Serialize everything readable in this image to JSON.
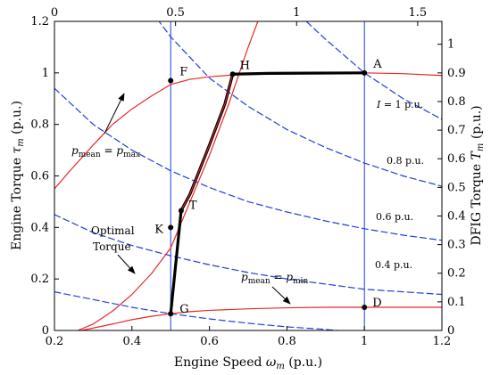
{
  "chart_data": {
    "type": "line",
    "axes": {
      "bottom": {
        "label": "Engine Speed ωm (p.u.)",
        "lim": [
          0.2,
          1.2
        ],
        "ticks": [
          0.2,
          0.4,
          0.6,
          0.8,
          1,
          1.2
        ],
        "tick_labels": [
          "0.2",
          "0.4",
          "0.6",
          "0.8",
          "1",
          "1.2"
        ]
      },
      "left": {
        "label": "Engine Torque τm (p.u.)",
        "lim": [
          0,
          1.2
        ],
        "ticks": [
          0,
          0.2,
          0.4,
          0.6,
          0.8,
          1,
          1.2
        ],
        "tick_labels": [
          "0",
          "0.2",
          "0.4",
          "0.6",
          "0.8",
          "1",
          "1.2"
        ]
      },
      "top": {
        "lim": [
          0,
          1.6
        ],
        "ticks": [
          0,
          0.5,
          1,
          1.5
        ],
        "tick_labels": [
          "0",
          "0.5",
          "1",
          "1.5"
        ]
      },
      "right": {
        "label": "DFIG Torque Tm (p.u.)",
        "lim": [
          0,
          1.08
        ],
        "ticks": [
          0,
          0.1,
          0.2,
          0.3,
          0.4,
          0.5,
          0.6,
          0.7,
          0.8,
          0.9,
          1
        ],
        "tick_labels": [
          "0",
          "0.1",
          "0.2",
          "0.3",
          "0.4",
          "0.5",
          "0.6",
          "0.7",
          "0.8",
          "0.9",
          "1"
        ]
      }
    },
    "grid": false,
    "series": [
      {
        "kind": "p_max_curve",
        "color": "#e8282b",
        "x": [
          0.2,
          0.24,
          0.3,
          0.35,
          0.4,
          0.45,
          0.5,
          0.55,
          0.6,
          0.66,
          0.75,
          0.85,
          1.0,
          1.1,
          1.2
        ],
        "y": [
          0.55,
          0.62,
          0.72,
          0.8,
          0.86,
          0.91,
          0.955,
          0.975,
          0.985,
          0.992,
          0.997,
          0.999,
          1.0,
          0.997,
          0.99
        ]
      },
      {
        "kind": "p_min_curve",
        "color": "#e8282b",
        "x": [
          0.27,
          0.35,
          0.4,
          0.45,
          0.5,
          0.55,
          0.6,
          0.7,
          0.8,
          0.9,
          1.0,
          1.1,
          1.2
        ],
        "y": [
          0.0,
          0.025,
          0.042,
          0.055,
          0.065,
          0.073,
          0.078,
          0.084,
          0.088,
          0.09,
          0.09,
          0.09,
          0.09
        ]
      },
      {
        "kind": "optimal_torque_curve",
        "color": "#e8282b",
        "x": [
          0.26,
          0.3,
          0.35,
          0.4,
          0.45,
          0.5,
          0.55,
          0.6,
          0.65,
          0.7,
          0.725
        ],
        "y": [
          0.0,
          0.025,
          0.075,
          0.14,
          0.22,
          0.32,
          0.5,
          0.68,
          0.88,
          1.1,
          1.2
        ]
      },
      {
        "kind": "operating_path",
        "color": "#000000",
        "x": [
          0.5,
          0.527,
          0.55,
          0.6,
          0.64,
          0.66,
          0.75,
          0.85,
          1.0
        ],
        "y": [
          0.065,
          0.465,
          0.53,
          0.72,
          0.88,
          0.995,
          0.998,
          0.999,
          1.0
        ]
      },
      {
        "kind": "current_contour",
        "label": "I = 1 p.u.",
        "color": "#1f3fdc",
        "dashed": true,
        "x": [
          0.62,
          0.7,
          0.8,
          0.9,
          1.0,
          1.1,
          1.2
        ],
        "y": [
          1.6,
          1.43,
          1.27,
          1.13,
          1.0,
          0.9,
          0.82
        ]
      },
      {
        "kind": "current_contour",
        "label": "0.8 p.u.",
        "color": "#1f3fdc",
        "dashed": true,
        "x": [
          0.42,
          0.5,
          0.6,
          0.7,
          0.8,
          0.9,
          1.0,
          1.1,
          1.2
        ],
        "y": [
          1.3,
          1.14,
          0.98,
          0.87,
          0.78,
          0.71,
          0.65,
          0.6,
          0.56
        ]
      },
      {
        "kind": "current_contour",
        "label": "0.6 p.u.",
        "color": "#1f3fdc",
        "dashed": true,
        "x": [
          0.2,
          0.3,
          0.4,
          0.5,
          0.6,
          0.7,
          0.8,
          0.9,
          1.0,
          1.1,
          1.2
        ],
        "y": [
          0.94,
          0.8,
          0.7,
          0.62,
          0.555,
          0.5,
          0.46,
          0.425,
          0.395,
          0.37,
          0.35
        ]
      },
      {
        "kind": "current_contour",
        "label": "0.4 p.u.",
        "color": "#1f3fdc",
        "dashed": true,
        "x": [
          0.2,
          0.3,
          0.4,
          0.5,
          0.6,
          0.7,
          0.8,
          0.9,
          1.0,
          1.1,
          1.2
        ],
        "y": [
          0.45,
          0.38,
          0.33,
          0.29,
          0.255,
          0.225,
          0.2,
          0.18,
          0.16,
          0.15,
          0.14
        ]
      },
      {
        "kind": "current_contour",
        "color": "#1f3fdc",
        "dashed": true,
        "x": [
          0.2,
          0.3,
          0.4,
          0.5,
          0.6,
          0.7,
          0.8,
          0.9,
          0.93
        ],
        "y": [
          0.15,
          0.12,
          0.09,
          0.065,
          0.045,
          0.028,
          0.014,
          0.004,
          0.0
        ]
      },
      {
        "kind": "vertical_line",
        "color": "#1f3fdc",
        "x": [
          0.5,
          0.5
        ],
        "y": [
          0,
          1.2
        ]
      },
      {
        "kind": "vertical_line",
        "color": "#1f3fdc",
        "x": [
          1.0,
          1.0
        ],
        "y": [
          0,
          1.2
        ]
      }
    ],
    "points": [
      {
        "label": "A",
        "x": 1.0,
        "y": 1.0
      },
      {
        "label": "F",
        "x": 0.5,
        "y": 0.97
      },
      {
        "label": "H",
        "x": 0.66,
        "y": 0.995
      },
      {
        "label": "T",
        "x": 0.527,
        "y": 0.465
      },
      {
        "label": "K",
        "x": 0.5,
        "y": 0.4
      },
      {
        "label": "G",
        "x": 0.5,
        "y": 0.065
      },
      {
        "label": "D",
        "x": 1.0,
        "y": 0.09
      }
    ],
    "annotations": {
      "pmax": {
        "p": "p",
        "sub1": "mean",
        "eq": " = ",
        "p2": "p",
        "sub2": "max"
      },
      "pmin": {
        "p": "p",
        "sub1": "mean",
        "eq": " = ",
        "p2": "p",
        "sub2": "min"
      },
      "optimal_line1": "Optimal",
      "optimal_line2": "Torque",
      "contour_labels": [
        "I = 1 p.u.",
        "0.8 p.u.",
        "0.6 p.u.",
        "0.4 p.u."
      ]
    }
  }
}
